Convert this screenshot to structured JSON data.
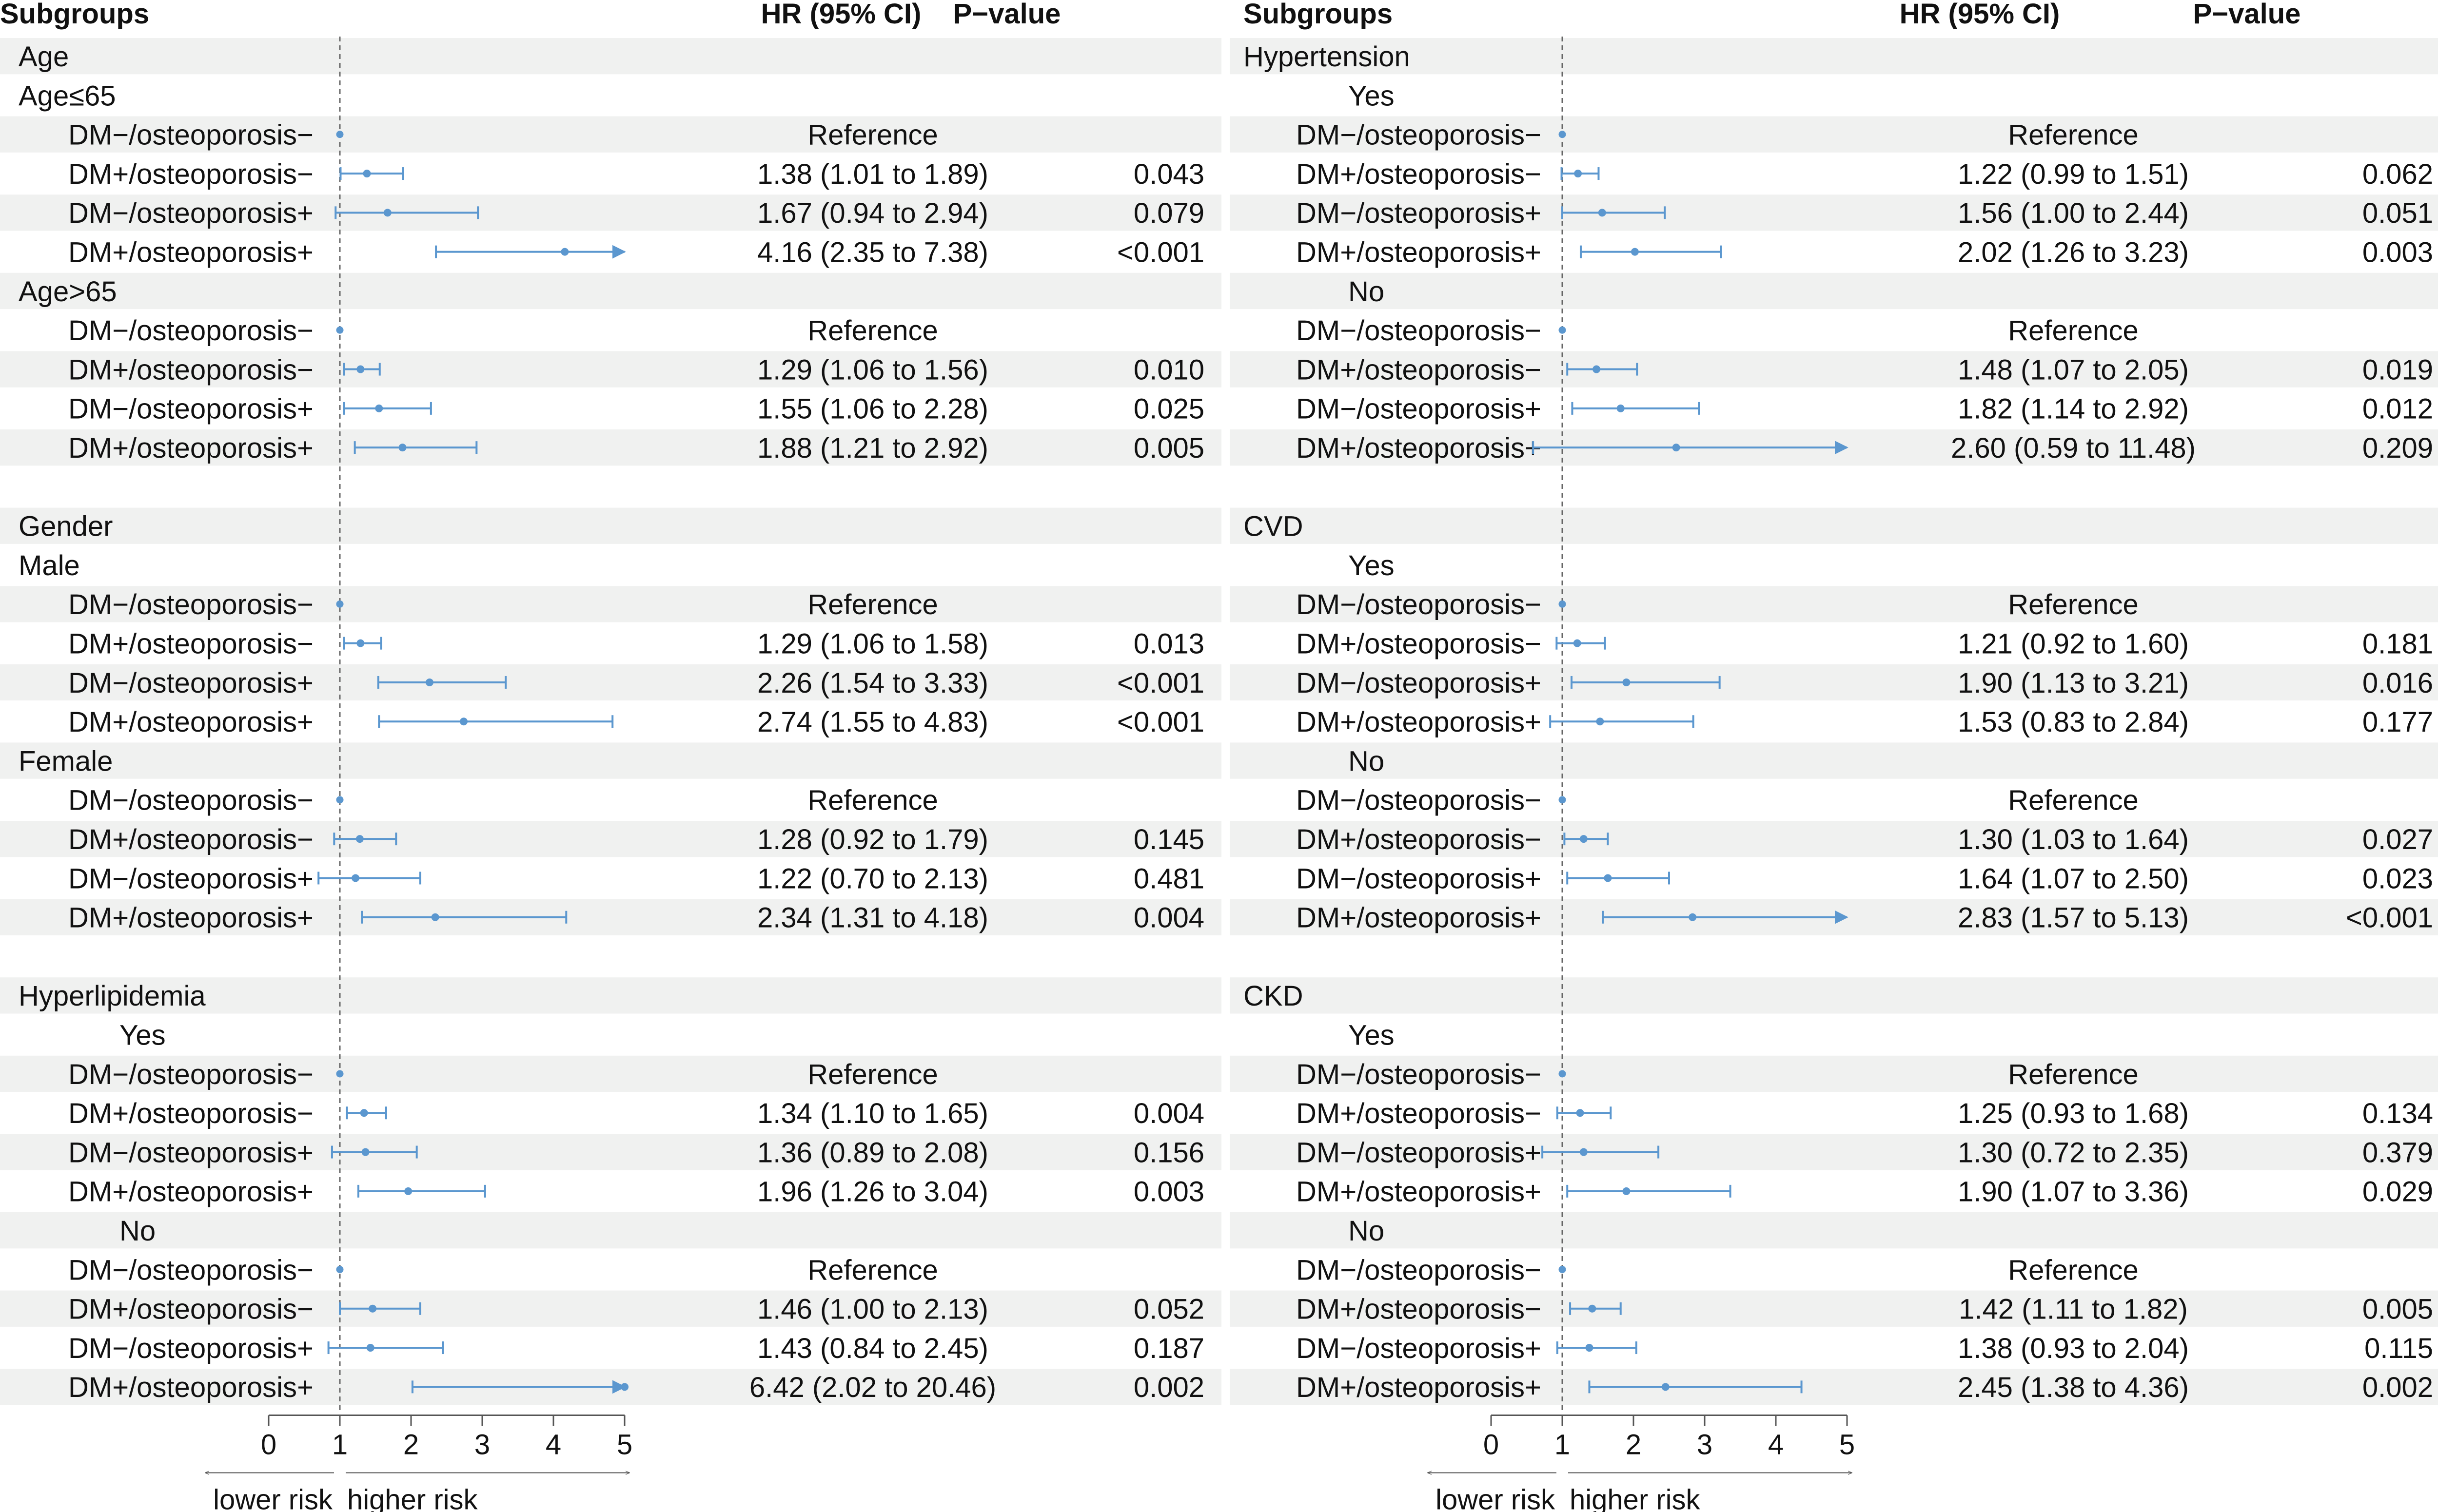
{
  "chart_data": [
    {
      "type": "forest",
      "panel": "left",
      "headers": {
        "subgroup": "Subgroups",
        "hr": "HR (95% CI)",
        "p": "P−value"
      },
      "xlim": [
        0,
        5
      ],
      "xticks": [
        "0",
        "1",
        "2",
        "3",
        "4",
        "5"
      ],
      "reference_line": 1,
      "arrow_labels": {
        "left": "lower risk",
        "right": "higher risk"
      },
      "rows": [
        {
          "kind": "group",
          "label": "Age"
        },
        {
          "kind": "subgroup",
          "label": "Age≤65"
        },
        {
          "kind": "data",
          "label": "DM−/osteoporosis−",
          "ref": true,
          "text": "Reference"
        },
        {
          "kind": "data",
          "label": "DM+/osteoporosis−",
          "hr": 1.38,
          "lo": 1.01,
          "hi": 1.89,
          "text": "1.38 (1.01 to 1.89)",
          "p": "0.043"
        },
        {
          "kind": "data",
          "label": "DM−/osteoporosis+",
          "hr": 1.67,
          "lo": 0.94,
          "hi": 2.94,
          "text": "1.67 (0.94 to 2.94)",
          "p": "0.079"
        },
        {
          "kind": "data",
          "label": "DM+/osteoporosis+",
          "hr": 4.16,
          "lo": 2.35,
          "hi": 7.38,
          "text": "4.16 (2.35 to 7.38)",
          "p": "<0.001"
        },
        {
          "kind": "subgroup",
          "label": "Age>65"
        },
        {
          "kind": "data",
          "label": "DM−/osteoporosis−",
          "ref": true,
          "text": "Reference"
        },
        {
          "kind": "data",
          "label": "DM+/osteoporosis−",
          "hr": 1.29,
          "lo": 1.06,
          "hi": 1.56,
          "text": "1.29 (1.06 to 1.56)",
          "p": "0.010"
        },
        {
          "kind": "data",
          "label": "DM−/osteoporosis+",
          "hr": 1.55,
          "lo": 1.06,
          "hi": 2.28,
          "text": "1.55 (1.06 to 2.28)",
          "p": "0.025"
        },
        {
          "kind": "data",
          "label": "DM+/osteoporosis+",
          "hr": 1.88,
          "lo": 1.21,
          "hi": 2.92,
          "text": "1.88 (1.21 to 2.92)",
          "p": "0.005"
        },
        {
          "kind": "blank"
        },
        {
          "kind": "group",
          "label": "Gender"
        },
        {
          "kind": "subgroup",
          "label": "Male"
        },
        {
          "kind": "data",
          "label": "DM−/osteoporosis−",
          "ref": true,
          "text": "Reference"
        },
        {
          "kind": "data",
          "label": "DM+/osteoporosis−",
          "hr": 1.29,
          "lo": 1.06,
          "hi": 1.58,
          "text": "1.29 (1.06 to 1.58)",
          "p": "0.013"
        },
        {
          "kind": "data",
          "label": "DM−/osteoporosis+",
          "hr": 2.26,
          "lo": 1.54,
          "hi": 3.33,
          "text": "2.26 (1.54 to 3.33)",
          "p": "<0.001"
        },
        {
          "kind": "data",
          "label": "DM+/osteoporosis+",
          "hr": 2.74,
          "lo": 1.55,
          "hi": 4.83,
          "text": "2.74 (1.55 to 4.83)",
          "p": "<0.001"
        },
        {
          "kind": "subgroup",
          "label": "Female"
        },
        {
          "kind": "data",
          "label": "DM−/osteoporosis−",
          "ref": true,
          "text": "Reference"
        },
        {
          "kind": "data",
          "label": "DM+/osteoporosis−",
          "hr": 1.28,
          "lo": 0.92,
          "hi": 1.79,
          "text": "1.28 (0.92 to 1.79)",
          "p": "0.145"
        },
        {
          "kind": "data",
          "label": "DM−/osteoporosis+",
          "hr": 1.22,
          "lo": 0.7,
          "hi": 2.13,
          "text": "1.22 (0.70 to 2.13)",
          "p": "0.481"
        },
        {
          "kind": "data",
          "label": "DM+/osteoporosis+",
          "hr": 2.34,
          "lo": 1.31,
          "hi": 4.18,
          "text": "2.34 (1.31 to 4.18)",
          "p": "0.004"
        },
        {
          "kind": "blank"
        },
        {
          "kind": "group",
          "label": "Hyperlipidemia"
        },
        {
          "kind": "subgroup",
          "label": "Yes",
          "indent": true
        },
        {
          "kind": "data",
          "label": "DM−/osteoporosis−",
          "ref": true,
          "text": "Reference"
        },
        {
          "kind": "data",
          "label": "DM+/osteoporosis−",
          "hr": 1.34,
          "lo": 1.1,
          "hi": 1.65,
          "text": "1.34 (1.10 to 1.65)",
          "p": "0.004"
        },
        {
          "kind": "data",
          "label": "DM−/osteoporosis+",
          "hr": 1.36,
          "lo": 0.89,
          "hi": 2.08,
          "text": "1.36 (0.89 to 2.08)",
          "p": "0.156"
        },
        {
          "kind": "data",
          "label": "DM+/osteoporosis+",
          "hr": 1.96,
          "lo": 1.26,
          "hi": 3.04,
          "text": "1.96 (1.26 to 3.04)",
          "p": "0.003"
        },
        {
          "kind": "subgroup",
          "label": "No",
          "indent": true
        },
        {
          "kind": "data",
          "label": "DM−/osteoporosis−",
          "ref": true,
          "text": "Reference"
        },
        {
          "kind": "data",
          "label": "DM+/osteoporosis−",
          "hr": 1.46,
          "lo": 1.0,
          "hi": 2.13,
          "text": "1.46 (1.00 to 2.13)",
          "p": "0.052"
        },
        {
          "kind": "data",
          "label": "DM−/osteoporosis+",
          "hr": 1.43,
          "lo": 0.84,
          "hi": 2.45,
          "text": "1.43 (0.84 to 2.45)",
          "p": "0.187"
        },
        {
          "kind": "data",
          "label": "DM+/osteoporosis+",
          "hr": 6.42,
          "lo": 2.02,
          "hi": 20.46,
          "text": "6.42 (2.02 to 20.46)",
          "p": "0.002"
        }
      ]
    },
    {
      "type": "forest",
      "panel": "right",
      "headers": {
        "subgroup": "Subgroups",
        "hr": "HR (95% CI)",
        "p": "P−value"
      },
      "xlim": [
        0,
        5
      ],
      "xticks": [
        "0",
        "1",
        "2",
        "3",
        "4",
        "5"
      ],
      "reference_line": 1,
      "arrow_labels": {
        "left": "lower risk",
        "right": "higher risk"
      },
      "rows": [
        {
          "kind": "group",
          "label": "Hypertension"
        },
        {
          "kind": "subgroup",
          "label": "Yes",
          "indent": true
        },
        {
          "kind": "data",
          "label": "DM−/osteoporosis−",
          "ref": true,
          "text": "Reference"
        },
        {
          "kind": "data",
          "label": "DM+/osteoporosis−",
          "hr": 1.22,
          "lo": 0.99,
          "hi": 1.51,
          "text": "1.22 (0.99 to 1.51)",
          "p": "0.062"
        },
        {
          "kind": "data",
          "label": "DM−/osteoporosis+",
          "hr": 1.56,
          "lo": 1.0,
          "hi": 2.44,
          "text": "1.56 (1.00 to 2.44)",
          "p": "0.051"
        },
        {
          "kind": "data",
          "label": "DM+/osteoporosis+",
          "hr": 2.02,
          "lo": 1.26,
          "hi": 3.23,
          "text": "2.02 (1.26 to 3.23)",
          "p": "0.003"
        },
        {
          "kind": "subgroup",
          "label": "No",
          "indent": true
        },
        {
          "kind": "data",
          "label": "DM−/osteoporosis−",
          "ref": true,
          "text": "Reference"
        },
        {
          "kind": "data",
          "label": "DM+/osteoporosis−",
          "hr": 1.48,
          "lo": 1.07,
          "hi": 2.05,
          "text": "1.48 (1.07 to 2.05)",
          "p": "0.019"
        },
        {
          "kind": "data",
          "label": "DM−/osteoporosis+",
          "hr": 1.82,
          "lo": 1.14,
          "hi": 2.92,
          "text": "1.82 (1.14 to 2.92)",
          "p": "0.012"
        },
        {
          "kind": "data",
          "label": "DM+/osteoporosis+",
          "hr": 2.6,
          "lo": 0.59,
          "hi": 11.48,
          "text": "2.60 (0.59 to 11.48)",
          "p": "0.209"
        },
        {
          "kind": "blank"
        },
        {
          "kind": "group",
          "label": "CVD"
        },
        {
          "kind": "subgroup",
          "label": "Yes",
          "indent": true
        },
        {
          "kind": "data",
          "label": "DM−/osteoporosis−",
          "ref": true,
          "text": "Reference"
        },
        {
          "kind": "data",
          "label": "DM+/osteoporosis−",
          "hr": 1.21,
          "lo": 0.92,
          "hi": 1.6,
          "text": "1.21 (0.92 to 1.60)",
          "p": "0.181"
        },
        {
          "kind": "data",
          "label": "DM−/osteoporosis+",
          "hr": 1.9,
          "lo": 1.13,
          "hi": 3.21,
          "text": "1.90 (1.13 to 3.21)",
          "p": "0.016"
        },
        {
          "kind": "data",
          "label": "DM+/osteoporosis+",
          "hr": 1.53,
          "lo": 0.83,
          "hi": 2.84,
          "text": "1.53 (0.83 to 2.84)",
          "p": "0.177"
        },
        {
          "kind": "subgroup",
          "label": "No",
          "indent": true
        },
        {
          "kind": "data",
          "label": "DM−/osteoporosis−",
          "ref": true,
          "text": "Reference"
        },
        {
          "kind": "data",
          "label": "DM+/osteoporosis−",
          "hr": 1.3,
          "lo": 1.03,
          "hi": 1.64,
          "text": "1.30 (1.03 to 1.64)",
          "p": "0.027"
        },
        {
          "kind": "data",
          "label": "DM−/osteoporosis+",
          "hr": 1.64,
          "lo": 1.07,
          "hi": 2.5,
          "text": "1.64 (1.07 to 2.50)",
          "p": "0.023"
        },
        {
          "kind": "data",
          "label": "DM+/osteoporosis+",
          "hr": 2.83,
          "lo": 1.57,
          "hi": 5.13,
          "text": "2.83 (1.57 to 5.13)",
          "p": "<0.001"
        },
        {
          "kind": "blank"
        },
        {
          "kind": "group",
          "label": "CKD"
        },
        {
          "kind": "subgroup",
          "label": "Yes",
          "indent": true
        },
        {
          "kind": "data",
          "label": "DM−/osteoporosis−",
          "ref": true,
          "text": "Reference"
        },
        {
          "kind": "data",
          "label": "DM+/osteoporosis−",
          "hr": 1.25,
          "lo": 0.93,
          "hi": 1.68,
          "text": "1.25 (0.93 to 1.68)",
          "p": "0.134"
        },
        {
          "kind": "data",
          "label": "DM−/osteoporosis+",
          "hr": 1.3,
          "lo": 0.72,
          "hi": 2.35,
          "text": "1.30 (0.72 to 2.35)",
          "p": "0.379"
        },
        {
          "kind": "data",
          "label": "DM+/osteoporosis+",
          "hr": 1.9,
          "lo": 1.07,
          "hi": 3.36,
          "text": "1.90 (1.07 to 3.36)",
          "p": "0.029"
        },
        {
          "kind": "subgroup",
          "label": "No",
          "indent": true
        },
        {
          "kind": "data",
          "label": "DM−/osteoporosis−",
          "ref": true,
          "text": "Reference"
        },
        {
          "kind": "data",
          "label": "DM+/osteoporosis−",
          "hr": 1.42,
          "lo": 1.11,
          "hi": 1.82,
          "text": "1.42 (1.11 to 1.82)",
          "p": "0.005"
        },
        {
          "kind": "data",
          "label": "DM−/osteoporosis+",
          "hr": 1.38,
          "lo": 0.93,
          "hi": 2.04,
          "text": "1.38 (0.93 to 2.04)",
          "p": "0.115"
        },
        {
          "kind": "data",
          "label": "DM+/osteoporosis+",
          "hr": 2.45,
          "lo": 1.38,
          "hi": 4.36,
          "text": "2.45 (1.38 to 4.36)",
          "p": "0.002"
        }
      ]
    }
  ],
  "colors": {
    "ci": "#5b97cf",
    "band": "#f0f1f0",
    "text": "#111111",
    "axis": "#555555",
    "reference_line": "#666666"
  }
}
